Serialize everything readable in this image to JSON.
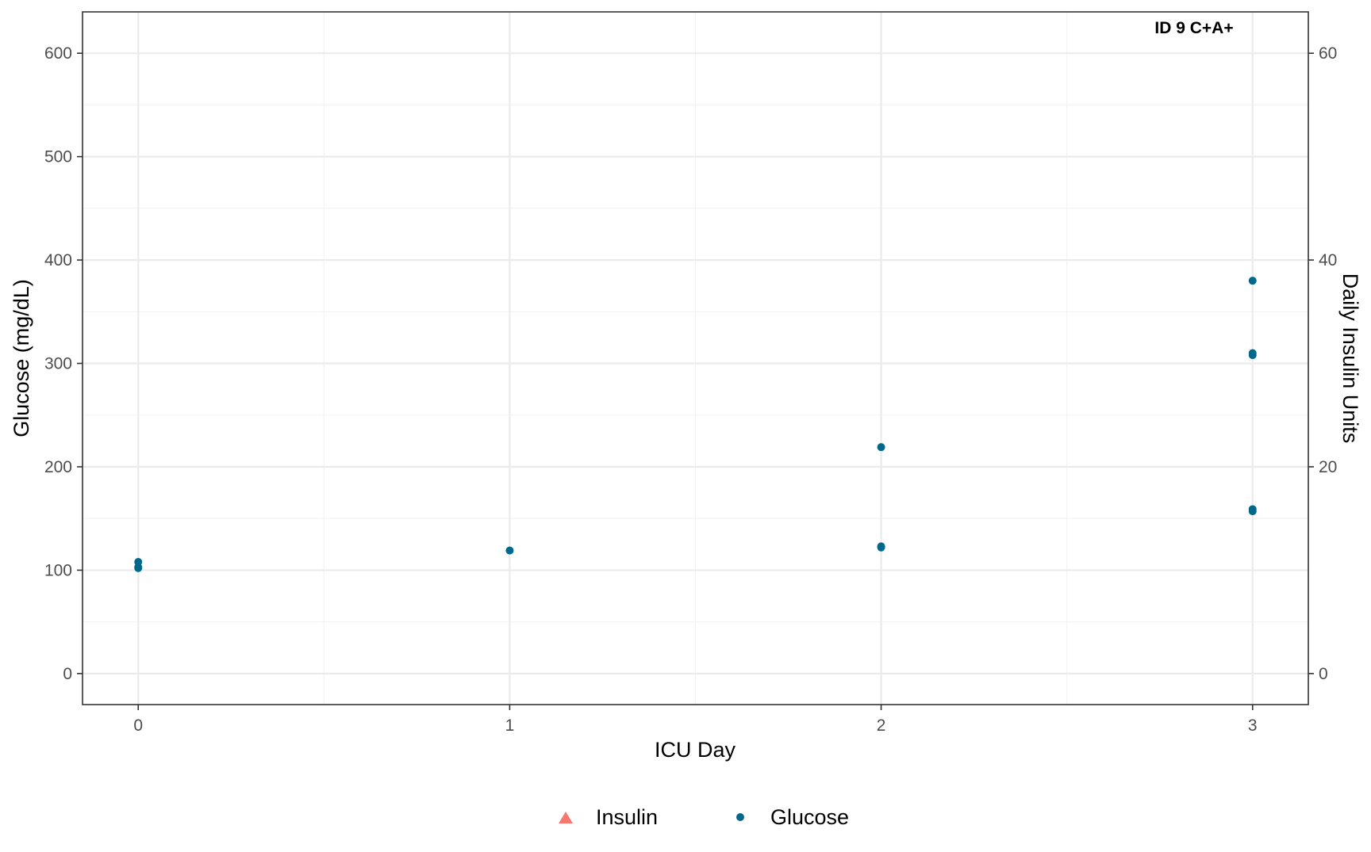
{
  "chart_data": {
    "type": "scatter",
    "title": "",
    "annotation": "ID 9 C+A+",
    "xlabel": "ICU Day",
    "ylabel": "Glucose (mg/dL)",
    "y2label": "Daily Insulin Units",
    "xlim": [
      -0.15,
      3.15
    ],
    "ylim": [
      -30,
      640
    ],
    "y2lim": [
      -3,
      64
    ],
    "xticks": [
      0,
      1,
      2,
      3
    ],
    "xtick_labels": [
      "0",
      "1",
      "2",
      "3"
    ],
    "yticks": [
      0,
      100,
      200,
      300,
      400,
      500,
      600
    ],
    "ytick_labels": [
      "0",
      "100",
      "200",
      "300",
      "400",
      "500",
      "600"
    ],
    "y2ticks": [
      0,
      20,
      40,
      60
    ],
    "y2tick_labels": [
      "0",
      "20",
      "40",
      "60"
    ],
    "grid": true,
    "legend_position": "bottom",
    "series": [
      {
        "name": "Insulin",
        "marker": "triangle",
        "color": "#F8766D",
        "points": []
      },
      {
        "name": "Glucose",
        "marker": "circle",
        "color": "#00688B",
        "points": [
          {
            "x": 0,
            "y": 108
          },
          {
            "x": 0,
            "y": 102
          },
          {
            "x": 0,
            "y": 103
          },
          {
            "x": 1,
            "y": 119
          },
          {
            "x": 2,
            "y": 219
          },
          {
            "x": 2,
            "y": 123
          },
          {
            "x": 2,
            "y": 122
          },
          {
            "x": 3,
            "y": 380
          },
          {
            "x": 3,
            "y": 310
          },
          {
            "x": 3,
            "y": 308
          },
          {
            "x": 3,
            "y": 159
          },
          {
            "x": 3,
            "y": 157
          }
        ]
      }
    ]
  }
}
